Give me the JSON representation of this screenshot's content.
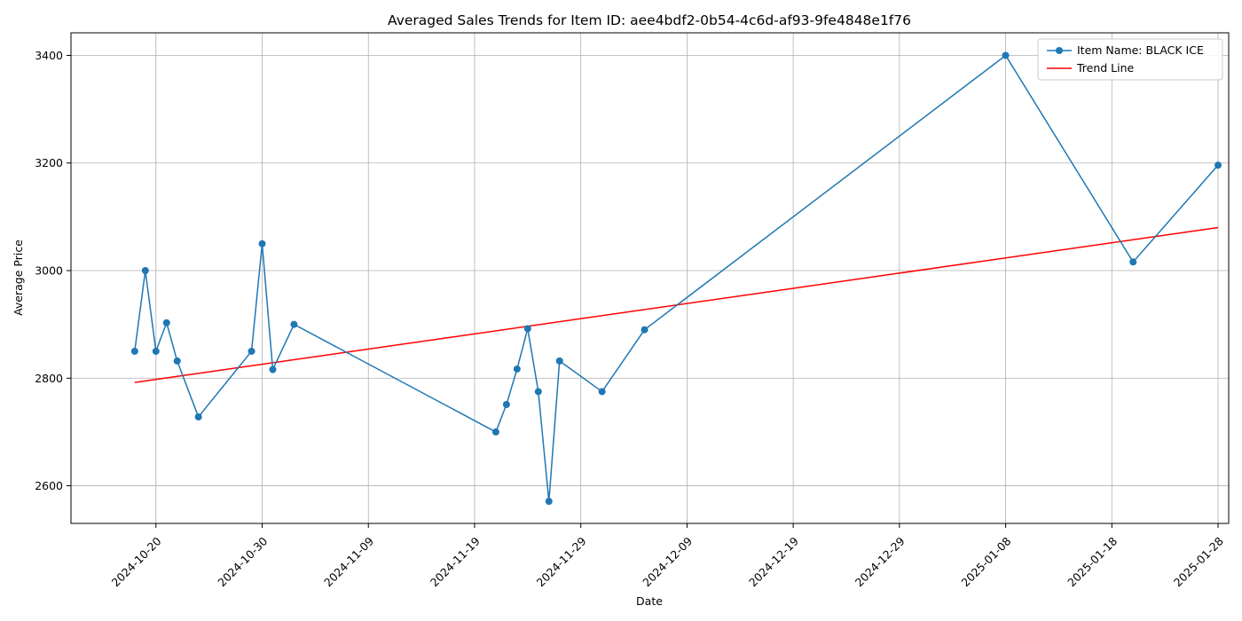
{
  "chart_data": {
    "type": "line",
    "title": "Averaged Sales Trends for Item ID: aee4bdf2-0b54-4c6d-af93-9fe4848e1f76",
    "xlabel": "Date",
    "ylabel": "Average Price",
    "x_range": [
      "2024-10-12",
      "2025-01-29"
    ],
    "ylim": [
      2530,
      3442
    ],
    "x_ticks": [
      "2024-10-20",
      "2024-10-30",
      "2024-11-09",
      "2024-11-19",
      "2024-11-29",
      "2024-12-09",
      "2024-12-19",
      "2024-12-29",
      "2025-01-08",
      "2025-01-18",
      "2025-01-28"
    ],
    "y_ticks": [
      2600,
      2800,
      3000,
      3200,
      3400
    ],
    "grid": true,
    "legend_position": "top-right",
    "series": [
      {
        "name": "Item Name: BLACK ICE",
        "color": "#1f77b4",
        "marker": "circle",
        "points": [
          {
            "x": "2024-10-18",
            "y": 2850
          },
          {
            "x": "2024-10-19",
            "y": 3000
          },
          {
            "x": "2024-10-20",
            "y": 2850
          },
          {
            "x": "2024-10-21",
            "y": 2903
          },
          {
            "x": "2024-10-22",
            "y": 2832
          },
          {
            "x": "2024-10-24",
            "y": 2728
          },
          {
            "x": "2024-10-29",
            "y": 2850
          },
          {
            "x": "2024-10-30",
            "y": 3050
          },
          {
            "x": "2024-10-31",
            "y": 2816
          },
          {
            "x": "2024-11-02",
            "y": 2900
          },
          {
            "x": "2024-11-21",
            "y": 2700
          },
          {
            "x": "2024-11-22",
            "y": 2751
          },
          {
            "x": "2024-11-23",
            "y": 2817
          },
          {
            "x": "2024-11-24",
            "y": 2892
          },
          {
            "x": "2024-11-25",
            "y": 2775
          },
          {
            "x": "2024-11-26",
            "y": 2571
          },
          {
            "x": "2024-11-27",
            "y": 2832
          },
          {
            "x": "2024-12-01",
            "y": 2775
          },
          {
            "x": "2024-12-05",
            "y": 2890
          },
          {
            "x": "2025-01-08",
            "y": 3400
          },
          {
            "x": "2025-01-20",
            "y": 3016
          },
          {
            "x": "2025-01-28",
            "y": 3196
          }
        ]
      },
      {
        "name": "Trend Line",
        "color": "#ff0000",
        "marker": "none",
        "points": [
          {
            "x": "2024-10-18",
            "y": 2792
          },
          {
            "x": "2025-01-28",
            "y": 3080
          }
        ]
      }
    ]
  }
}
